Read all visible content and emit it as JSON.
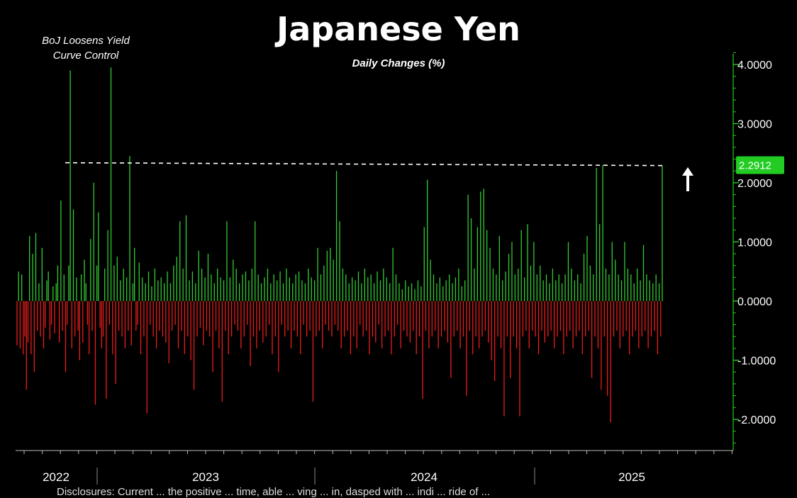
{
  "chart_data": {
    "type": "bar",
    "title": "Japanese Yen",
    "subtitle": "Daily Changes (%)",
    "annotation": "BoJ Loosens Yield Curve Control",
    "last_value_label": "2.2912",
    "reference_line_value": 2.2912,
    "ylim": [
      -2.5,
      4.2
    ],
    "yticks": [
      4,
      3,
      2,
      1,
      0,
      -1,
      -2
    ],
    "ytick_labels": [
      "4.0000",
      "3.0000",
      "2.0000",
      "1.0000",
      "0.0000",
      "-1.0000",
      "-2.0000"
    ],
    "x_period_labels": [
      "2022",
      "2023",
      "2024",
      "2025"
    ],
    "x_range": [
      "2022-10-01",
      "2025-12-31"
    ],
    "series": [
      {
        "values": [
          -0.75,
          0.5,
          -0.8,
          0.45,
          -0.9,
          -0.6,
          -1.5,
          -0.7,
          1.1,
          -0.9,
          0.8,
          -1.2,
          1.15,
          -0.5,
          0.3,
          -0.6,
          0.9,
          -0.8,
          -0.45,
          0.35,
          0.5,
          -0.65,
          -0.4,
          0.25,
          -0.55,
          0.3,
          0.6,
          -0.7,
          1.7,
          -0.5,
          0.45,
          -1.2,
          -0.4,
          0.6,
          3.9,
          -0.8,
          1.55,
          -0.6,
          0.4,
          -0.5,
          -1.0,
          0.45,
          -0.7,
          0.7,
          0.3,
          -0.4,
          -0.9,
          1.05,
          -0.5,
          2.0,
          -1.75,
          0.6,
          1.5,
          -0.45,
          -0.8,
          -0.6,
          0.55,
          -1.65,
          1.2,
          -0.4,
          3.95,
          -0.9,
          0.6,
          -1.4,
          0.75,
          -0.5,
          0.35,
          -0.6,
          0.55,
          -0.8,
          0.4,
          -0.5,
          2.45,
          -0.75,
          0.3,
          0.9,
          -0.5,
          -0.4,
          0.65,
          -0.9,
          0.4,
          -0.6,
          0.3,
          -1.9,
          0.5,
          -0.4,
          0.25,
          -0.6,
          0.55,
          -0.8,
          0.35,
          -0.5,
          0.4,
          -0.6,
          0.3,
          -0.7,
          0.5,
          -1.05,
          0.3,
          -0.5,
          0.6,
          -0.4,
          0.75,
          -0.8,
          1.35,
          -0.5,
          0.55,
          -0.9,
          1.45,
          -0.6,
          0.35,
          -1.0,
          0.5,
          -1.5,
          0.3,
          -0.6,
          0.85,
          -0.45,
          0.55,
          -0.75,
          0.4,
          -0.5,
          0.8,
          -0.6,
          0.45,
          -1.2,
          0.3,
          -0.5,
          0.55,
          -0.8,
          0.4,
          -1.7,
          0.35,
          -0.5,
          1.35,
          -0.9,
          0.4,
          -0.6,
          0.7,
          -0.4,
          0.55,
          -0.5,
          0.3,
          -0.8,
          0.45,
          -0.6,
          0.5,
          -0.4,
          0.35,
          -1.1,
          0.55,
          -0.6,
          1.35,
          -0.8,
          0.45,
          -0.5,
          0.3,
          -0.7,
          0.4,
          -0.6,
          0.55,
          -0.4,
          0.3,
          -0.9,
          0.45,
          -0.6,
          0.35,
          -1.2,
          0.5,
          -0.4,
          0.3,
          -0.6,
          0.55,
          -0.5,
          0.4,
          -0.8,
          0.3,
          -0.5,
          0.45,
          -0.6,
          0.5,
          -0.9,
          0.35,
          -0.4,
          0.3,
          -0.6,
          0.55,
          -0.5,
          0.4,
          -1.7,
          0.35,
          -0.6,
          0.9,
          -0.5,
          0.45,
          -0.8,
          0.6,
          -0.4,
          0.85,
          -0.5,
          0.9,
          -0.6,
          0.7,
          -0.4,
          2.2,
          -0.5,
          1.35,
          -0.8,
          0.55,
          -0.6,
          0.45,
          -0.5,
          0.3,
          -0.9,
          0.4,
          -0.6,
          0.35,
          -0.8,
          0.5,
          -0.4,
          0.3,
          -0.6,
          0.55,
          -0.5,
          0.4,
          -0.9,
          0.45,
          -0.6,
          0.3,
          -0.7,
          0.5,
          -0.4,
          0.35,
          -0.8,
          0.55,
          -0.6,
          0.4,
          -0.5,
          0.3,
          -0.9,
          0.9,
          -0.6,
          0.45,
          -0.4,
          0.3,
          -0.8,
          0.2,
          -0.5,
          0.35,
          -0.6,
          0.25,
          -0.7,
          0.3,
          -0.5,
          0.2,
          -0.9,
          0.35,
          -0.6,
          0.25,
          -1.65,
          1.25,
          -0.5,
          2.05,
          -0.8,
          0.7,
          -0.6,
          0.45,
          -0.5,
          0.3,
          -0.8,
          0.4,
          -0.6,
          0.25,
          -0.5,
          0.35,
          -0.7,
          0.45,
          -1.3,
          0.3,
          -0.6,
          0.4,
          -0.5,
          0.55,
          -0.8,
          0.25,
          -0.6,
          0.35,
          -1.6,
          1.8,
          -0.5,
          1.4,
          -0.9,
          0.55,
          -0.6,
          1.25,
          -0.8,
          1.85,
          -0.6,
          1.9,
          -0.5,
          1.2,
          -0.7,
          0.9,
          -1.0,
          0.55,
          -1.35,
          0.45,
          -0.6,
          1.1,
          -0.8,
          0.35,
          -1.95,
          0.5,
          -0.6,
          0.8,
          -1.3,
          1.0,
          -0.6,
          0.45,
          -0.8,
          0.55,
          -1.95,
          1.2,
          -0.6,
          0.4,
          -0.5,
          1.3,
          -0.8,
          0.6,
          -0.5,
          1.0,
          -0.6,
          0.45,
          -0.9,
          0.6,
          -0.5,
          0.35,
          -0.7,
          0.45,
          -0.6,
          0.3,
          -0.5,
          0.55,
          -0.8,
          0.35,
          -0.6,
          0.45,
          -0.5,
          0.3,
          -0.9,
          0.45,
          -0.6,
          1.0,
          -0.5,
          0.55,
          -0.8,
          0.35,
          -0.6,
          0.45,
          -0.5,
          0.3,
          -0.9,
          0.8,
          -0.6,
          1.1,
          -0.5,
          0.6,
          -1.3,
          0.45,
          -0.6,
          2.25,
          -0.8,
          1.3,
          -1.5,
          2.3,
          -0.6,
          0.55,
          -1.6,
          0.45,
          -2.05,
          1.0,
          -0.6,
          0.7,
          -0.5,
          0.45,
          -0.8,
          0.35,
          -0.6,
          1.0,
          -0.5,
          0.55,
          -0.9,
          0.45,
          -0.6,
          0.3,
          -0.5,
          0.55,
          -0.8,
          0.35,
          -0.6,
          0.95,
          -0.5,
          0.45,
          -0.8,
          0.35,
          -0.6,
          0.3,
          -0.5,
          0.45,
          -0.9,
          0.3,
          -0.6,
          2.2912
        ]
      }
    ],
    "bar_colors": {
      "positive": "#33cc33",
      "negative": "#ee1c1c"
    },
    "axis_color": "#22cc22",
    "last_label_bg": "#22cc22",
    "grid": false
  },
  "footer_text": "Disclosures: Current ... the positive ... time, able ... ving ... in, dasped with ... indi ... ride of ..."
}
